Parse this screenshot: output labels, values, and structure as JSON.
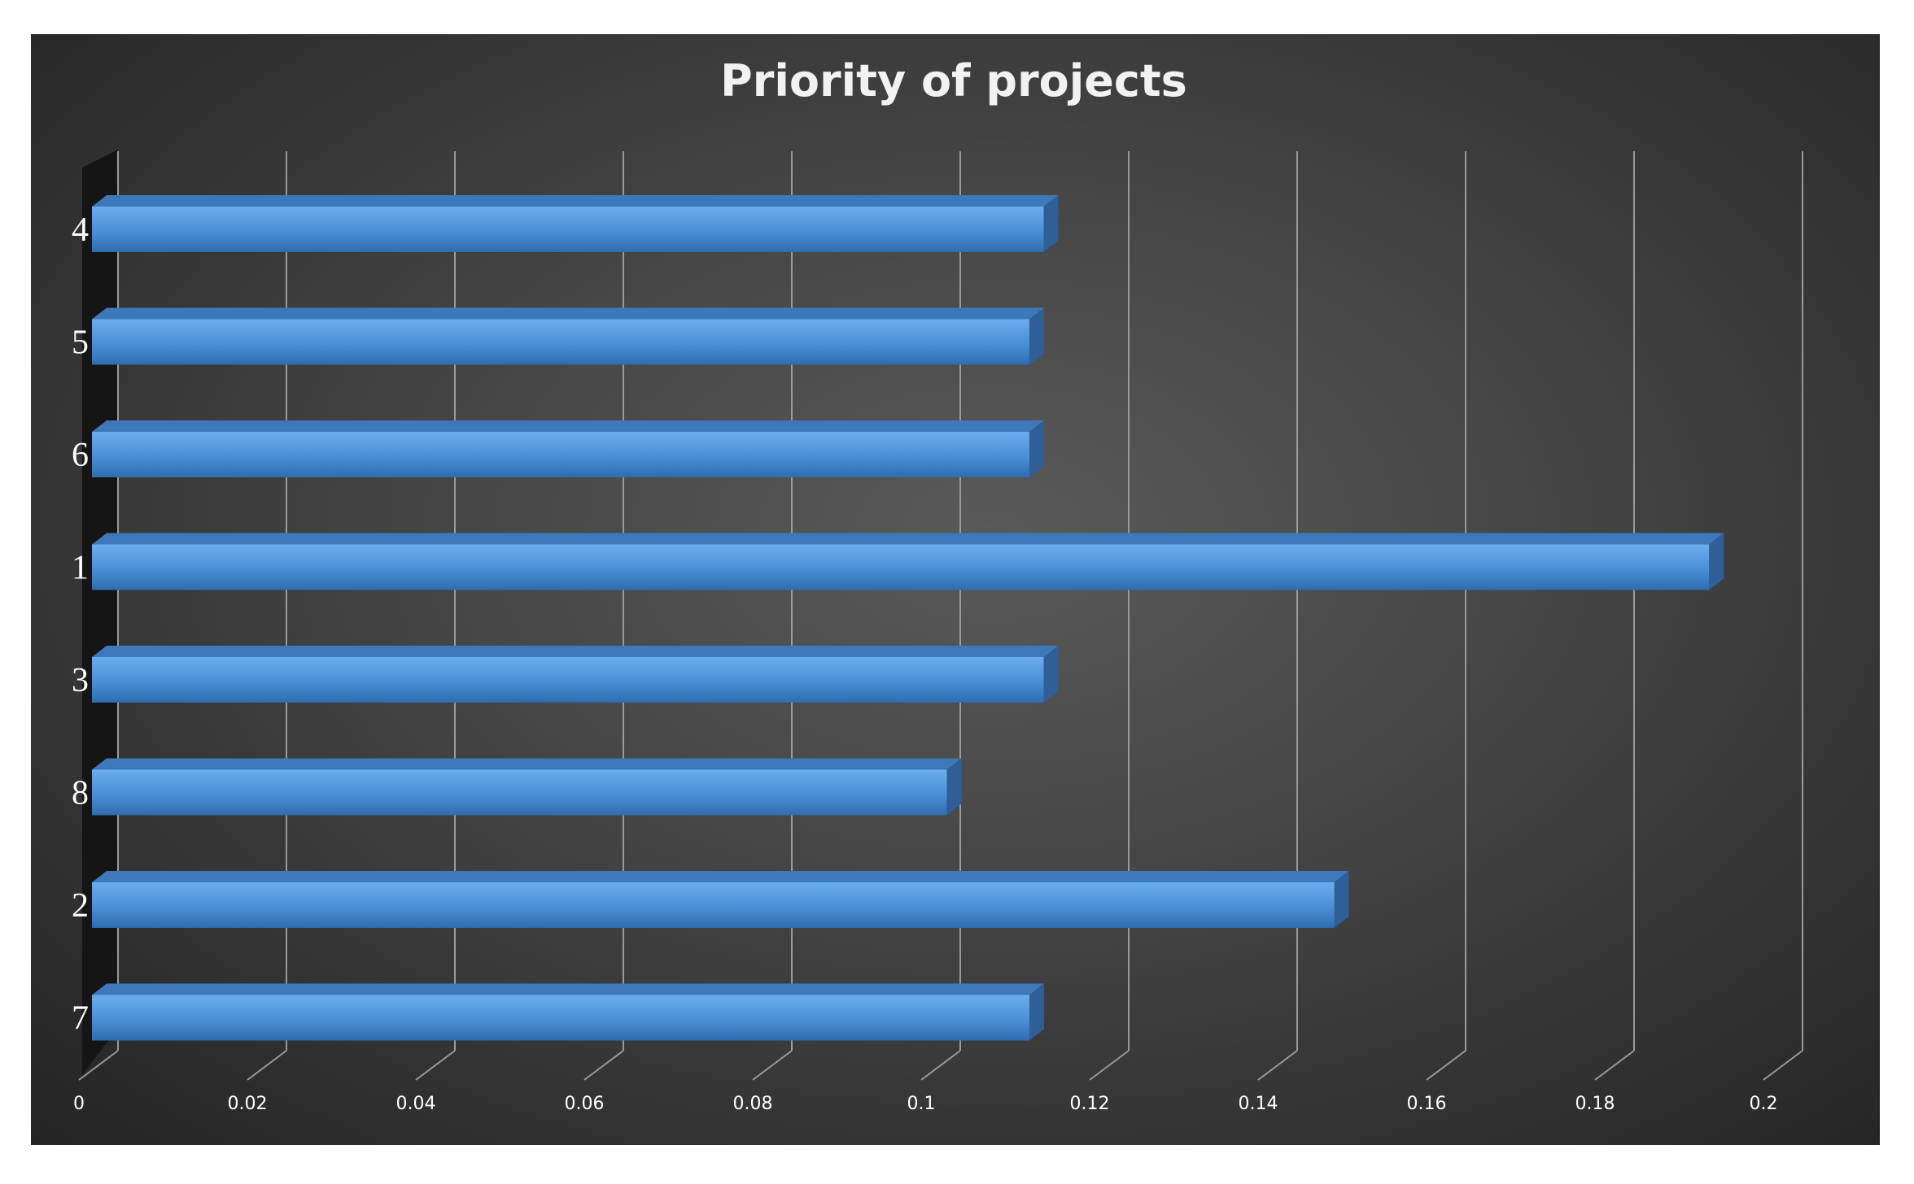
{
  "chart_data": {
    "type": "bar",
    "orientation": "horizontal",
    "title": "Priority of projects",
    "xlabel": "",
    "ylabel": "",
    "xlim": [
      0,
      0.2
    ],
    "x_ticks": [
      "0",
      "0.02",
      "0.04",
      "0.06",
      "0.08",
      "0.1",
      "0.12",
      "0.14",
      "0.16",
      "0.18",
      "0.2"
    ],
    "categories": [
      "4",
      "5",
      "6",
      "1",
      "3",
      "8",
      "2",
      "7"
    ],
    "values": [
      0.113,
      0.1113,
      0.1113,
      0.192,
      0.113,
      0.1015,
      0.1475,
      0.1113
    ],
    "grid": true,
    "legend": "none",
    "colors": {
      "bar_front": "#4a8fd6",
      "bar_top": "#3c78ba",
      "bar_side": "#2f5f96",
      "grid": "#9a9a9a",
      "text": "#ffffff"
    }
  }
}
